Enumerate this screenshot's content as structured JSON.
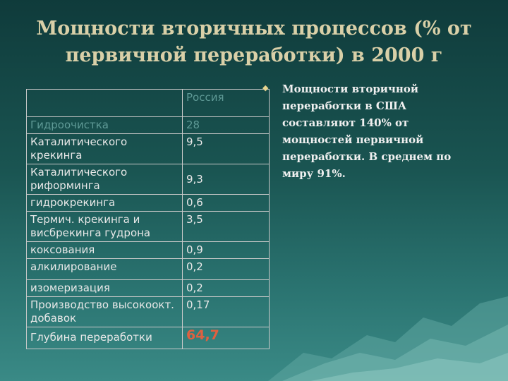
{
  "slide": {
    "title": "Мощности вторичных процессов (% от\nпервичной переработки)  в 2000 г",
    "bullet_icon": "diamond-bullet-icon",
    "bullet_text": "Мощности вторичной переработки в США составляют 140% от мощностей первичной переработки. В среднем по миру 91%."
  },
  "table": {
    "header": {
      "col1": "",
      "col2": "Россия"
    },
    "rows": [
      {
        "name": "Гидроочистка",
        "value": "28"
      },
      {
        "name": "Каталитического крекинга",
        "value": "9,5"
      },
      {
        "name": "Каталитического риформинга",
        "value": "9,3"
      },
      {
        "name": "гидрокрекинга",
        "value": "0,6"
      },
      {
        "name": "Термич. крекинга и висбрекинга гудрона",
        "value": "3,5"
      },
      {
        "name": "коксования",
        "value": "0,9"
      },
      {
        "name": "алкилирование",
        "value": "0,2"
      },
      {
        "name": "изомеризация",
        "value": "0,2"
      },
      {
        "name": "Производство высокоокт. добавок",
        "value": "0,17"
      },
      {
        "name": "Глубина переработки",
        "value": "64,7"
      }
    ]
  },
  "colors": {
    "title": "#d9d0a8",
    "highlight_value": "#e06040",
    "background_top": "#0f3b3b"
  }
}
